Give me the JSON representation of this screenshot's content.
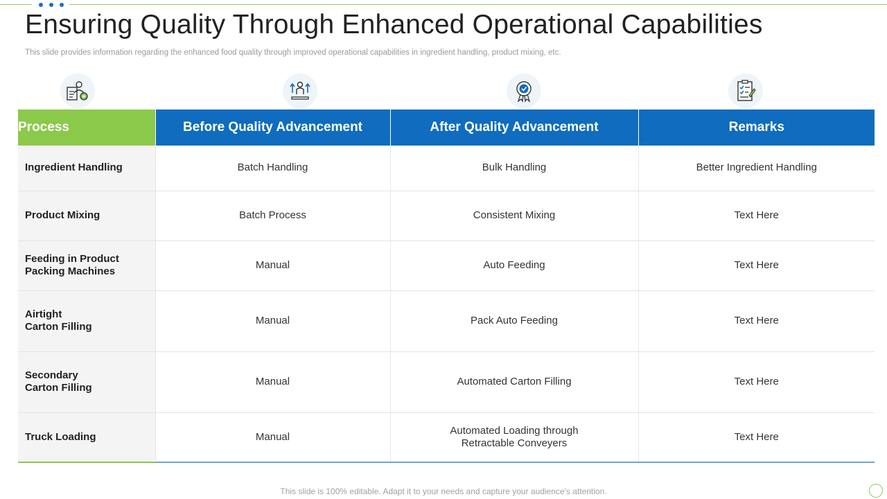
{
  "slide": {
    "title": "Ensuring Quality Through Enhanced Operational Capabilities",
    "subtitle": "This slide provides information regarding the enhanced food quality through improved operational capabilities in ingredient handling, product mixing, etc.",
    "footer": "This slide is 100% editable. Adapt it to your needs and capture your audience's attention."
  },
  "icons": [
    "worker-gear-icon",
    "growth-arrows-icon",
    "quality-badge-icon",
    "checklist-icon"
  ],
  "colors": {
    "process_header": "#8bc94a",
    "column_header": "#0f6cbf",
    "accent_green": "#8ccf5a"
  },
  "table": {
    "headers": [
      "Process",
      "Before Quality Advancement",
      "After Quality Advancement",
      "Remarks"
    ],
    "rows": [
      {
        "process": [
          "Ingredient Handling"
        ],
        "before": [
          "Batch Handling"
        ],
        "after": [
          "Bulk Handling"
        ],
        "remarks": [
          "Better Ingredient Handling"
        ]
      },
      {
        "process": [
          "Product Mixing"
        ],
        "before": [
          "Batch Process"
        ],
        "after": [
          "Consistent Mixing"
        ],
        "remarks": [
          "Text Here"
        ]
      },
      {
        "process": [
          "Feeding in Product",
          "Packing Machines"
        ],
        "before": [
          "Manual"
        ],
        "after": [
          "Auto Feeding"
        ],
        "remarks": [
          "Text Here"
        ]
      },
      {
        "process": [
          "Airtight",
          "Carton Filling"
        ],
        "before": [
          "Manual"
        ],
        "after": [
          "Pack Auto Feeding"
        ],
        "remarks": [
          "Text Here"
        ]
      },
      {
        "process": [
          "Secondary",
          "Carton Filling"
        ],
        "before": [
          "Manual"
        ],
        "after": [
          "Automated Carton Filling"
        ],
        "remarks": [
          "Text Here"
        ]
      },
      {
        "process": [
          "Truck Loading"
        ],
        "before": [
          "Manual"
        ],
        "after": [
          "Automated Loading through",
          "Retractable Conveyers"
        ],
        "remarks": [
          "Text Here"
        ]
      }
    ]
  }
}
